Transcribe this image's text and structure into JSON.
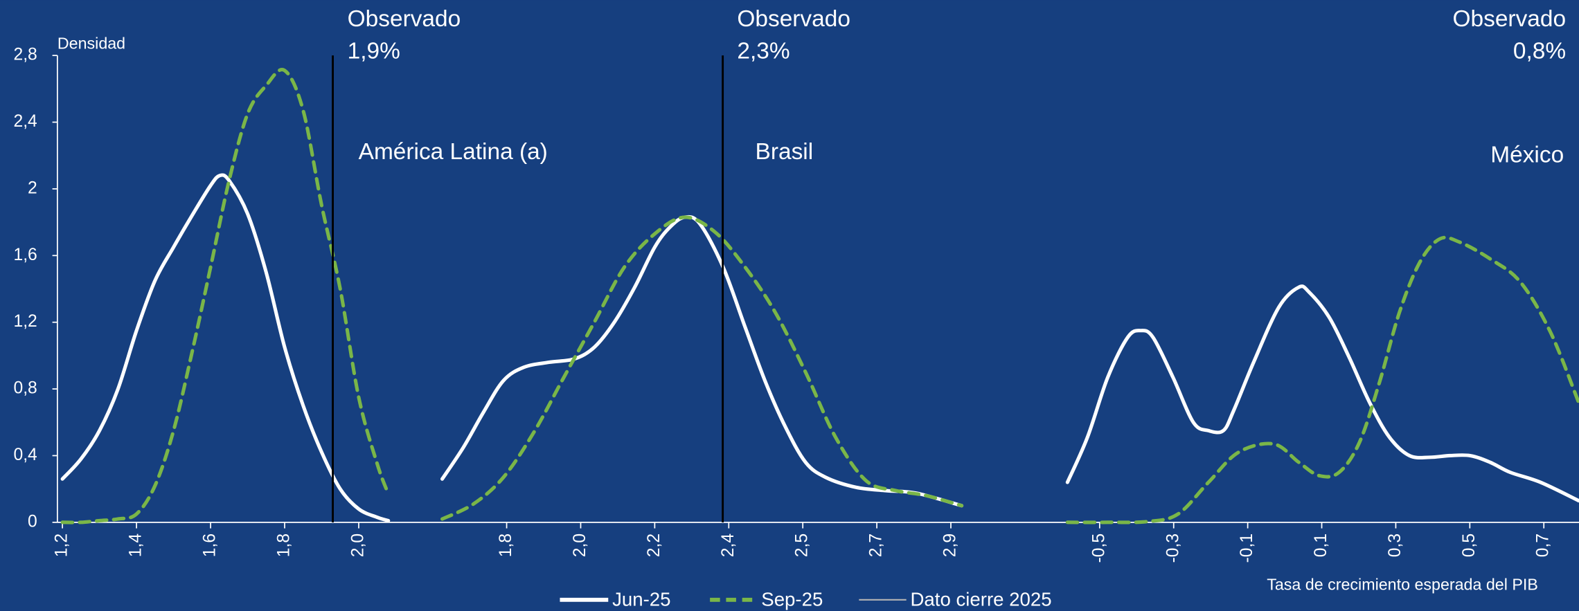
{
  "chart_data": {
    "type": "line",
    "ylabel": "Densidad",
    "xlabel": "Tasa de crecimiento esperada del PIB",
    "ylim": [
      0,
      2.8
    ],
    "yticks": [
      0,
      {
        "value": 0.4,
        "label": "0,4"
      },
      {
        "value": 0.8,
        "label": "0,8"
      },
      {
        "value": 1.2,
        "label": "1,2"
      },
      {
        "value": 1.6,
        "label": "1,6"
      },
      2,
      {
        "value": 2.4,
        "label": "2,4"
      },
      {
        "value": 2.8,
        "label": "2,8"
      }
    ],
    "series_styles": [
      {
        "name": "Jun-25",
        "color": "#ffffff",
        "dashed": false
      },
      {
        "name": "Sep-25",
        "color": "#7ab648",
        "dashed": true
      }
    ],
    "observed_line": {
      "name": "Dato cierre 2025",
      "color": "#000000",
      "legend_color": "#b4b4b4"
    },
    "panels": [
      {
        "title": "América Latina (a)",
        "xlim": [
          1.2,
          2.1
        ],
        "xticks": [
          {
            "value": 1.2,
            "label": "1,2"
          },
          {
            "value": 1.4,
            "label": "1,4"
          },
          {
            "value": 1.6,
            "label": "1,6"
          },
          {
            "value": 1.8,
            "label": "1,8"
          },
          {
            "value": 2.0,
            "label": "2,0"
          }
        ],
        "observed": {
          "label": "Observado",
          "value": 1.93,
          "value_label": "1,9%"
        },
        "series": [
          {
            "x": [
              1.2,
              1.25,
              1.3,
              1.35,
              1.4,
              1.45,
              1.5,
              1.55,
              1.6,
              1.625,
              1.65,
              1.7,
              1.75,
              1.8,
              1.85,
              1.9,
              1.95,
              2.0,
              2.05,
              2.08
            ],
            "values": [
              0.26,
              0.38,
              0.55,
              0.8,
              1.15,
              1.45,
              1.65,
              1.84,
              2.02,
              2.08,
              2.05,
              1.85,
              1.5,
              1.05,
              0.7,
              0.42,
              0.2,
              0.08,
              0.03,
              0.01
            ]
          },
          {
            "x": [
              1.2,
              1.25,
              1.3,
              1.35,
              1.4,
              1.45,
              1.5,
              1.55,
              1.6,
              1.65,
              1.7,
              1.75,
              1.8,
              1.85,
              1.9,
              1.95,
              2.0,
              2.05,
              2.08
            ],
            "values": [
              0,
              0,
              0.01,
              0.02,
              0.05,
              0.22,
              0.55,
              1.02,
              1.53,
              2.05,
              2.45,
              2.62,
              2.71,
              2.47,
              1.9,
              1.4,
              0.75,
              0.35,
              0.17
            ]
          }
        ]
      },
      {
        "title": "Brasil",
        "xlim": [
          1.616,
          3.0
        ],
        "xticks": [
          {
            "value": 1.8,
            "label": "1,8"
          },
          {
            "value": 1.985,
            "label": "2,0"
          },
          {
            "value": 2.17,
            "label": "2,2"
          },
          {
            "value": 2.355,
            "label": "2,4"
          },
          {
            "value": 2.54,
            "label": "2,5"
          },
          {
            "value": 2.725,
            "label": "2,7"
          },
          {
            "value": 2.91,
            "label": "2,9"
          }
        ],
        "observed": {
          "label": "Observado",
          "value": 2.34,
          "value_label": "2,3%"
        },
        "series": [
          {
            "x": [
              1.639,
              1.692,
              1.742,
              1.792,
              1.843,
              1.906,
              1.969,
              2.019,
              2.069,
              2.12,
              2.17,
              2.208,
              2.245,
              2.283,
              2.341,
              2.396,
              2.447,
              2.497,
              2.547,
              2.597,
              2.673,
              2.748,
              2.824,
              2.937
            ],
            "values": [
              0.26,
              0.45,
              0.66,
              0.85,
              0.93,
              0.96,
              0.98,
              1.05,
              1.2,
              1.41,
              1.65,
              1.77,
              1.83,
              1.79,
              1.53,
              1.17,
              0.84,
              0.57,
              0.36,
              0.27,
              0.21,
              0.19,
              0.175,
              0.1
            ]
          },
          {
            "x": [
              1.639,
              1.717,
              1.792,
              1.868,
              1.943,
              2.019,
              2.094,
              2.17,
              2.245,
              2.321,
              2.396,
              2.471,
              2.547,
              2.622,
              2.698,
              2.773,
              2.849,
              2.937
            ],
            "values": [
              0.02,
              0.11,
              0.27,
              0.54,
              0.87,
              1.2,
              1.53,
              1.73,
              1.83,
              1.74,
              1.53,
              1.26,
              0.9,
              0.51,
              0.25,
              0.19,
              0.16,
              0.1
            ]
          }
        ]
      },
      {
        "title": "México",
        "xlim": [
          -0.704,
          0.795
        ],
        "xticks": [
          -0.5,
          -0.3,
          -0.1,
          0.1,
          0.3,
          0.5,
          0.7
        ],
        "xtick_labels": [
          "-0,5",
          "-0,3",
          "-0,1",
          "0,1",
          "0,3",
          "0,5",
          "0,7"
        ],
        "observed": {
          "label": "Observado",
          "value": 0.8,
          "value_label": "0,8%"
        },
        "series": [
          {
            "x": [
              -0.587,
              -0.533,
              -0.478,
              -0.424,
              -0.389,
              -0.356,
              -0.302,
              -0.247,
              -0.206,
              -0.166,
              -0.138,
              -0.084,
              -0.016,
              0.038,
              0.066,
              0.12,
              0.174,
              0.229,
              0.283,
              0.337,
              0.392,
              0.446,
              0.501,
              0.555,
              0.609,
              0.691,
              0.794
            ],
            "values": [
              0.24,
              0.51,
              0.87,
              1.11,
              1.15,
              1.11,
              0.87,
              0.6,
              0.55,
              0.55,
              0.67,
              0.96,
              1.29,
              1.41,
              1.38,
              1.23,
              0.99,
              0.72,
              0.51,
              0.4,
              0.39,
              0.4,
              0.4,
              0.36,
              0.3,
              0.24,
              0.13
            ]
          },
          {
            "x": [
              -0.587,
              -0.478,
              -0.369,
              -0.288,
              -0.206,
              -0.125,
              -0.03,
              0.038,
              0.093,
              0.147,
              0.202,
              0.256,
              0.31,
              0.365,
              0.419,
              0.473,
              0.555,
              0.637,
              0.718,
              0.794
            ],
            "values": [
              0,
              0,
              0.005,
              0.05,
              0.24,
              0.42,
              0.47,
              0.36,
              0.28,
              0.3,
              0.48,
              0.84,
              1.26,
              1.56,
              1.7,
              1.68,
              1.58,
              1.44,
              1.14,
              0.72
            ]
          }
        ]
      }
    ]
  }
}
